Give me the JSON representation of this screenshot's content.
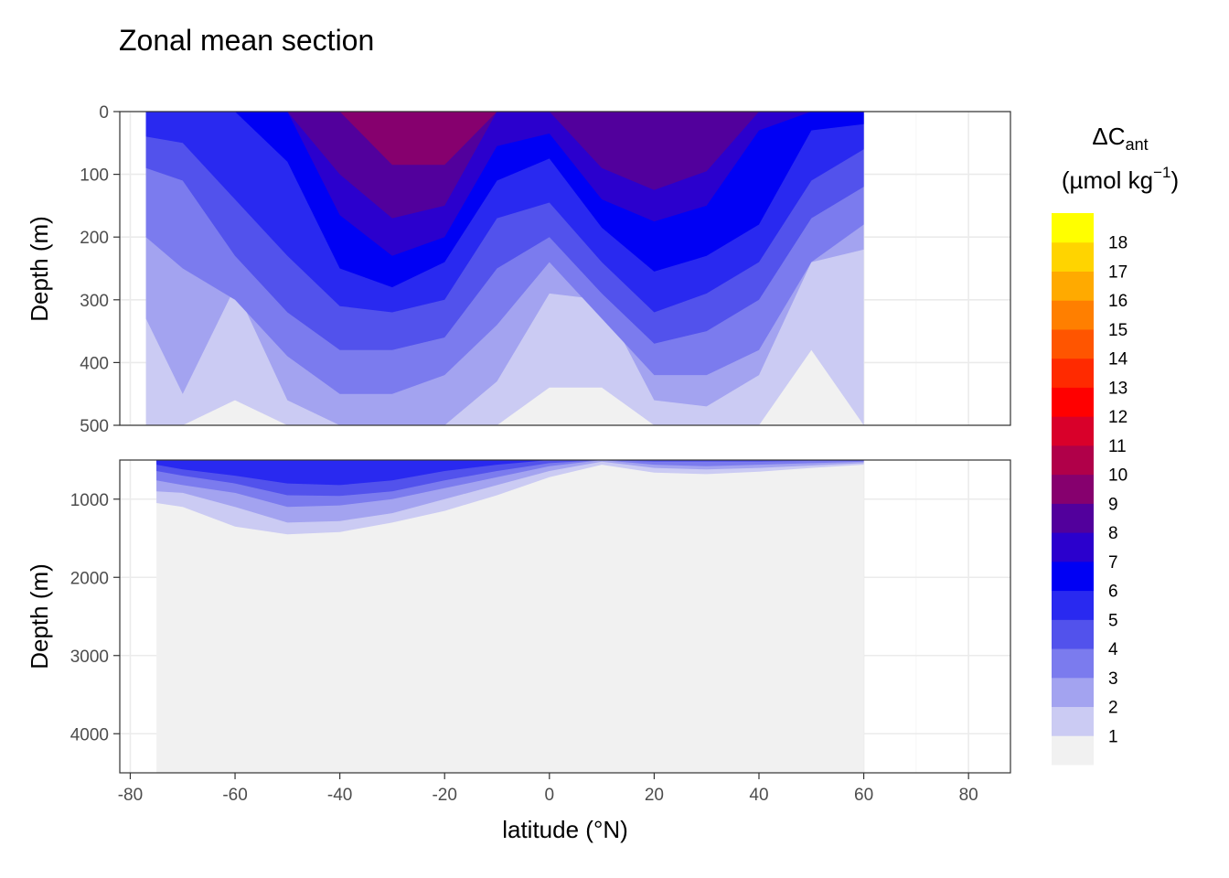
{
  "chart_data": {
    "type": "heatmap",
    "title": "Zonal mean section",
    "xlabel": "latitude (°N)",
    "ylabel": "Depth (m)",
    "xlim": [
      -82,
      88
    ],
    "x_ticks": [
      -80,
      -60,
      -40,
      -20,
      0,
      20,
      40,
      60,
      80
    ],
    "x_tick_labels": [
      "-80",
      "-60",
      "-40",
      "-20",
      "0",
      "20",
      "40",
      "60",
      "80"
    ],
    "grid": true,
    "panels": [
      {
        "name": "upper",
        "ylabel": "Depth (m)",
        "ylim": [
          0,
          500
        ],
        "y_ticks": [
          0,
          100,
          200,
          300,
          400,
          500
        ],
        "y_tick_labels": [
          "0",
          "100",
          "200",
          "300",
          "400",
          "500"
        ],
        "latitudes": [
          -77,
          -70,
          -60,
          -50,
          -40,
          -30,
          -20,
          -10,
          0,
          10,
          20,
          30,
          40,
          50,
          60
        ],
        "contours": [
          {
            "level": 9,
            "top": [
              0,
              0,
              0,
              0,
              0,
              0,
              0,
              0,
              0,
              0,
              0,
              0,
              0,
              0,
              0
            ],
            "bottom": [
              0,
              0,
              0,
              0,
              0,
              85,
              85,
              0,
              0,
              0,
              0,
              0,
              0,
              0,
              0
            ]
          },
          {
            "level": 8,
            "top": [
              0,
              0,
              0,
              0,
              0,
              0,
              0,
              0,
              0,
              0,
              0,
              0,
              0,
              0,
              0
            ],
            "bottom": [
              0,
              0,
              0,
              0,
              100,
              170,
              150,
              0,
              0,
              90,
              125,
              95,
              0,
              0,
              0
            ]
          },
          {
            "level": 7,
            "top": [
              0,
              0,
              0,
              0,
              0,
              0,
              0,
              0,
              0,
              0,
              0,
              0,
              0,
              0,
              0
            ],
            "bottom": [
              0,
              0,
              0,
              0,
              165,
              230,
              200,
              55,
              35,
              140,
              175,
              150,
              30,
              0,
              0
            ]
          },
          {
            "level": 6,
            "top": [
              0,
              0,
              0,
              0,
              0,
              0,
              0,
              0,
              0,
              0,
              0,
              0,
              0,
              0,
              0
            ],
            "bottom": [
              0,
              0,
              0,
              80,
              250,
              280,
              240,
              110,
              75,
              185,
              255,
              230,
              180,
              30,
              20
            ]
          },
          {
            "level": 5,
            "top": [
              0,
              0,
              0,
              0,
              0,
              0,
              0,
              0,
              0,
              0,
              0,
              0,
              0,
              0,
              0
            ],
            "bottom": [
              40,
              50,
              140,
              230,
              310,
              320,
              300,
              170,
              145,
              240,
              320,
              290,
              240,
              110,
              60
            ]
          },
          {
            "level": 4,
            "top": [
              0,
              0,
              0,
              0,
              0,
              0,
              0,
              0,
              0,
              0,
              0,
              0,
              0,
              0,
              0
            ],
            "bottom": [
              90,
              110,
              230,
              320,
              380,
              380,
              360,
              250,
              200,
              290,
              370,
              350,
              300,
              170,
              120
            ]
          },
          {
            "level": 3,
            "top": [
              0,
              0,
              0,
              0,
              0,
              0,
              0,
              0,
              0,
              0,
              0,
              0,
              0,
              0,
              0
            ],
            "bottom": [
              200,
              250,
              300,
              390,
              450,
              450,
              420,
              340,
              240,
              330,
              420,
              420,
              380,
              240,
              180
            ]
          },
          {
            "level": 2,
            "top": [
              0,
              0,
              0,
              0,
              0,
              0,
              0,
              0,
              0,
              0,
              0,
              0,
              0,
              0,
              0
            ],
            "bottom": [
              330,
              450,
              280,
              460,
              500,
              500,
              500,
              430,
              290,
              300,
              460,
              470,
              420,
              240,
              220
            ]
          },
          {
            "level": 1,
            "top": [
              0,
              0,
              0,
              0,
              0,
              0,
              0,
              0,
              0,
              0,
              0,
              0,
              0,
              0,
              0
            ],
            "bottom": [
              500,
              500,
              460,
              500,
              500,
              500,
              500,
              500,
              440,
              440,
              500,
              500,
              500,
              380,
              500
            ]
          }
        ]
      },
      {
        "name": "lower",
        "ylabel": "Depth (m)",
        "ylim": [
          500,
          4500
        ],
        "y_ticks": [
          1000,
          2000,
          3000,
          4000
        ],
        "y_tick_labels": [
          "1000",
          "2000",
          "3000",
          "4000"
        ],
        "latitudes": [
          -75,
          -70,
          -60,
          -50,
          -40,
          -30,
          -20,
          -10,
          0,
          10,
          20,
          30,
          40,
          50,
          60
        ],
        "contours": [
          {
            "level": 5,
            "bottom": [
              560,
              620,
              700,
              800,
              820,
              760,
              640,
              560,
              500,
              500,
              500,
              500,
              500,
              500,
              500
            ]
          },
          {
            "level": 4,
            "bottom": [
              640,
              700,
              800,
              950,
              960,
              900,
              760,
              640,
              540,
              500,
              520,
              520,
              520,
              510,
              510
            ]
          },
          {
            "level": 3,
            "bottom": [
              760,
              820,
              920,
              1100,
              1080,
              1000,
              860,
              720,
              580,
              500,
              560,
              580,
              560,
              540,
              520
            ]
          },
          {
            "level": 2,
            "bottom": [
              900,
              920,
              1100,
              1300,
              1280,
              1180,
              1000,
              820,
              640,
              520,
              600,
              620,
              600,
              570,
              540
            ]
          },
          {
            "level": 1,
            "bottom": [
              1050,
              1100,
              1350,
              1450,
              1420,
              1300,
              1150,
              950,
              720,
              560,
              660,
              680,
              650,
              600,
              560
            ]
          }
        ]
      }
    ],
    "legend": {
      "title": "ΔC",
      "title_subscript": "ant",
      "subtitle_prefix": "(µmol kg",
      "subtitle_superscript": "−1",
      "subtitle_suffix": ")",
      "placement": "right",
      "bins": [
        {
          "label": "",
          "color": "#f1f1f1"
        },
        {
          "label": "1",
          "color": "#cbcbf3"
        },
        {
          "label": "2",
          "color": "#a3a3f0"
        },
        {
          "label": "3",
          "color": "#7b7bee"
        },
        {
          "label": "4",
          "color": "#5252ec"
        },
        {
          "label": "5",
          "color": "#2929f0"
        },
        {
          "label": "6",
          "color": "#0000f4"
        },
        {
          "label": "7",
          "color": "#2b00cd"
        },
        {
          "label": "8",
          "color": "#52009c"
        },
        {
          "label": "9",
          "color": "#86006e"
        },
        {
          "label": "10",
          "color": "#b00049"
        },
        {
          "label": "11",
          "color": "#d9002a"
        },
        {
          "label": "12",
          "color": "#ff0000"
        },
        {
          "label": "13",
          "color": "#ff2a00"
        },
        {
          "label": "14",
          "color": "#ff5500"
        },
        {
          "label": "15",
          "color": "#ff7f00"
        },
        {
          "label": "16",
          "color": "#ffaa00"
        },
        {
          "label": "17",
          "color": "#ffd400"
        },
        {
          "label": "18",
          "color": "#ffff00"
        }
      ]
    }
  }
}
